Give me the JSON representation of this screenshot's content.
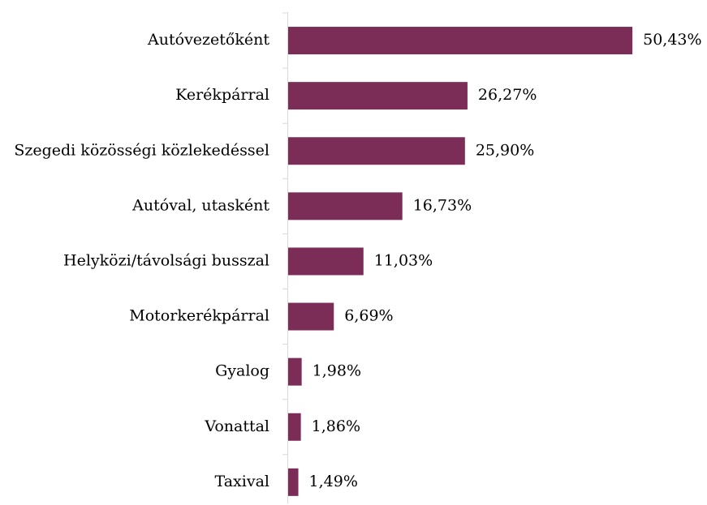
{
  "chart_data": {
    "type": "bar",
    "orientation": "horizontal",
    "categories": [
      "Autóvezetőként",
      "Kerékpárral",
      "Szegedi közösségi közlekedéssel",
      "Autóval, utasként",
      "Helyközi/távolsági busszal",
      "Motorkerékpárral",
      "Gyalog",
      "Vonattal",
      "Taxival"
    ],
    "values": [
      50.43,
      26.27,
      25.9,
      16.73,
      11.03,
      6.69,
      1.98,
      1.86,
      1.49
    ],
    "value_labels": [
      "50,43%",
      "26,27%",
      "25,90%",
      "16,73%",
      "11,03%",
      "6,69%",
      "1,98%",
      "1,86%",
      "1,49%"
    ],
    "color": "#7b2d58"
  }
}
